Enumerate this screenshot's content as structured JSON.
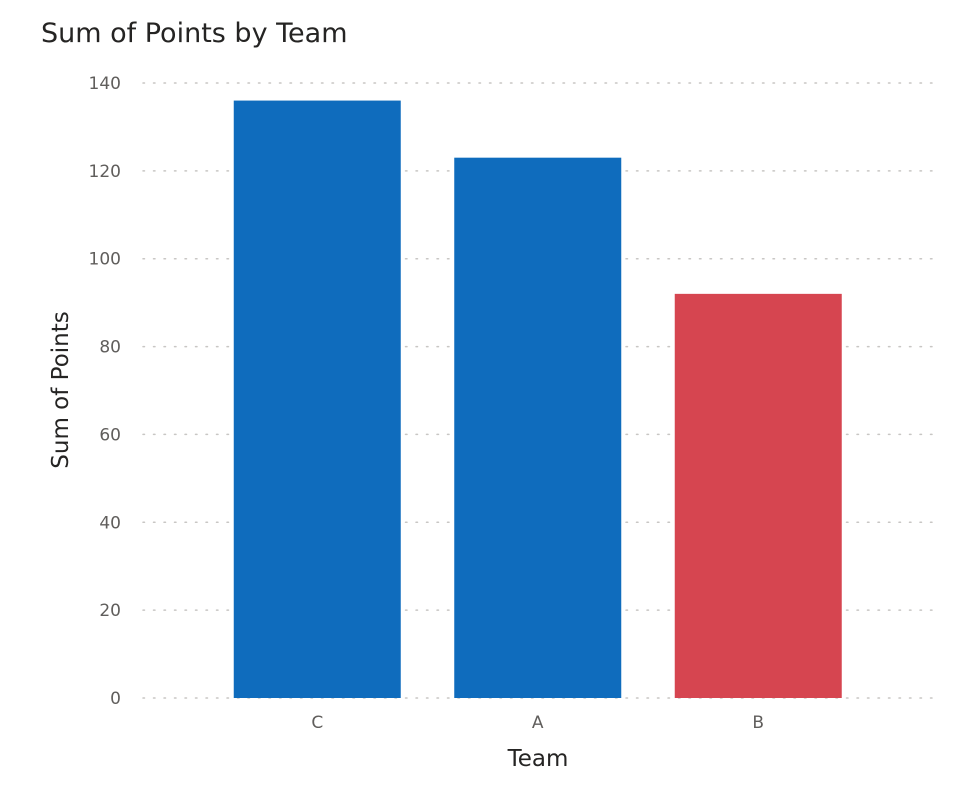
{
  "chart_data": {
    "type": "bar",
    "title": "Sum of Points by Team",
    "xlabel": "Team",
    "ylabel": "Sum of Points",
    "categories": [
      "C",
      "A",
      "B"
    ],
    "values": [
      136,
      123,
      92
    ],
    "bar_colors": [
      "#0f6cbd",
      "#0f6cbd",
      "#d64550"
    ],
    "ylim": [
      0,
      140
    ],
    "yticks": [
      "0",
      "20",
      "40",
      "60",
      "80",
      "100",
      "120",
      "140"
    ],
    "grid": true,
    "grid_style": "dotted",
    "legend": "none"
  }
}
